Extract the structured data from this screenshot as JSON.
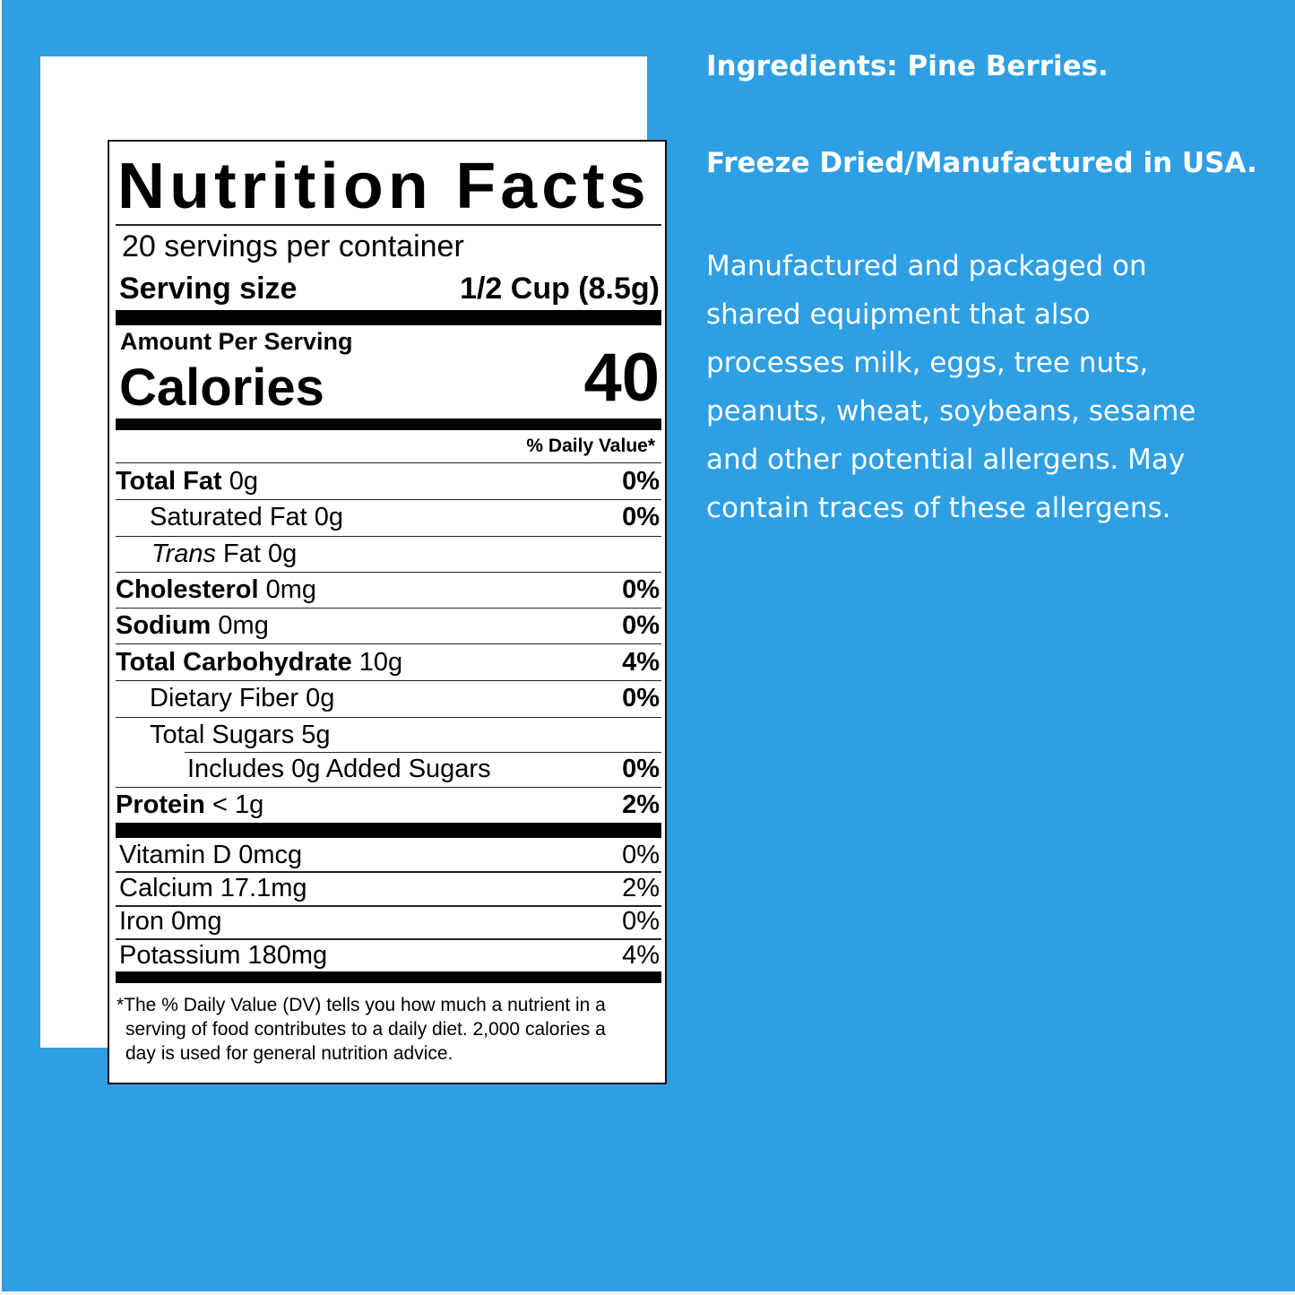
{
  "colors": {
    "background": "#2e9fe3",
    "panel": "#ffffff",
    "text_side": "#ffffff"
  },
  "label": {
    "title": "Nutrition Facts",
    "servings": "20 servings per container",
    "serving_size_label": "Serving size",
    "serving_size_value": "1/2 Cup (8.5g)",
    "amount_per_serving": "Amount Per Serving",
    "calories_label": "Calories",
    "calories_value": "40",
    "dv_header": "% Daily Value*",
    "nutrients": [
      {
        "name": "Total Fat",
        "amount": "0g",
        "dv": "0%"
      },
      {
        "name": "Saturated Fat",
        "amount": "0g",
        "dv": "0%"
      },
      {
        "name": "Trans",
        "name_suffix": "Fat",
        "amount": "0g",
        "dv": ""
      },
      {
        "name": "Cholesterol",
        "amount": "0mg",
        "dv": "0%"
      },
      {
        "name": "Sodium",
        "amount": "0mg",
        "dv": "0%"
      },
      {
        "name": "Total Carbohydrate",
        "amount": "10g",
        "dv": "4%"
      },
      {
        "name": "Dietary Fiber",
        "amount": "0g",
        "dv": "0%"
      },
      {
        "name": "Total Sugars",
        "amount": "5g",
        "dv": ""
      },
      {
        "name": "Includes 0g Added Sugars",
        "amount": "",
        "dv": "0%"
      },
      {
        "name": "Protein",
        "amount": "< 1g",
        "dv": "2%"
      }
    ],
    "vitamins": [
      {
        "text": "Vitamin D 0mcg",
        "dv": "0%"
      },
      {
        "text": "Calcium 17.1mg",
        "dv": "2%"
      },
      {
        "text": "Iron 0mg",
        "dv": "0%"
      },
      {
        "text": "Potassium 180mg",
        "dv": "4%"
      }
    ],
    "footnote": [
      "*The % Daily Value (DV) tells you how much a nutrient in a",
      "serving of food contributes to a daily diet. 2,000 calories a",
      "day is used for general nutrition advice."
    ]
  },
  "side": {
    "ingredients": "Ingredients: Pine Berries.",
    "origin": "Freeze Dried/Manufactured in USA.",
    "allergen_lines": [
      "Manufactured and packaged on",
      "shared equipment that also",
      "processes milk, eggs, tree nuts,",
      "peanuts, wheat, soybeans, sesame",
      "and other potential allergens. May",
      "contain traces of these allergens."
    ]
  }
}
